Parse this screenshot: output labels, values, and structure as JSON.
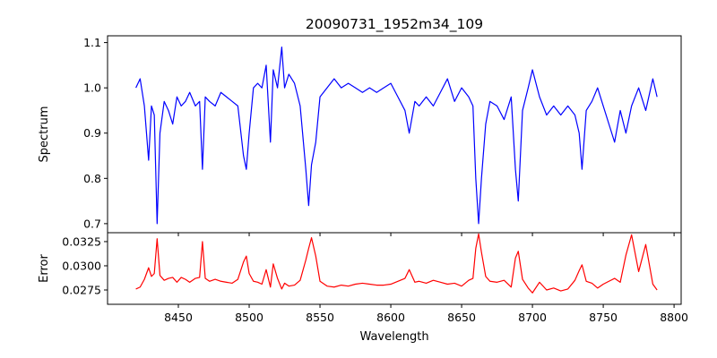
{
  "chart_data": [
    {
      "type": "line",
      "title": "20090731_1952m34_109",
      "xlabel": "",
      "ylabel": "Spectrum",
      "xlim": [
        8400,
        8805
      ],
      "ylim": [
        0.68,
        1.115
      ],
      "xticks": [
        8450,
        8500,
        8550,
        8600,
        8650,
        8700,
        8750,
        8800
      ],
      "yticks": [
        0.7,
        0.8,
        0.9,
        1.0,
        1.1
      ],
      "ytick_labels": [
        "0.7",
        "0.8",
        "0.9",
        "1.0",
        "1.1"
      ],
      "x_tick_labels_shown": false,
      "series": [
        {
          "name": "Spectrum",
          "color": "#0000ff",
          "x": [
            8420,
            8423,
            8426,
            8429,
            8431,
            8433,
            8435,
            8437,
            8440,
            8443,
            8446,
            8449,
            8452,
            8455,
            8458,
            8462,
            8465,
            8467,
            8469,
            8472,
            8476,
            8480,
            8484,
            8488,
            8492,
            8496,
            8498,
            8500,
            8503,
            8506,
            8509,
            8512,
            8515,
            8517,
            8520,
            8523,
            8525,
            8528,
            8532,
            8536,
            8540,
            8542,
            8544,
            8547,
            8550,
            8555,
            8560,
            8565,
            8570,
            8575,
            8580,
            8585,
            8590,
            8595,
            8600,
            8605,
            8610,
            8613,
            8617,
            8620,
            8625,
            8630,
            8635,
            8640,
            8645,
            8650,
            8655,
            8658,
            8660,
            8662,
            8664,
            8667,
            8670,
            8675,
            8680,
            8685,
            8688,
            8690,
            8693,
            8697,
            8700,
            8705,
            8710,
            8715,
            8720,
            8725,
            8730,
            8733,
            8735,
            8738,
            8742,
            8746,
            8750,
            8754,
            8758,
            8762,
            8766,
            8770,
            8775,
            8780,
            8785,
            8788
          ],
          "y": [
            1.0,
            1.02,
            0.96,
            0.84,
            0.96,
            0.94,
            0.7,
            0.9,
            0.97,
            0.95,
            0.92,
            0.98,
            0.96,
            0.97,
            0.99,
            0.96,
            0.97,
            0.82,
            0.98,
            0.97,
            0.96,
            0.99,
            0.98,
            0.97,
            0.96,
            0.85,
            0.82,
            0.9,
            1.0,
            1.01,
            1.0,
            1.05,
            0.88,
            1.04,
            1.0,
            1.09,
            1.0,
            1.03,
            1.01,
            0.96,
            0.82,
            0.74,
            0.83,
            0.88,
            0.98,
            1.0,
            1.02,
            1.0,
            1.01,
            1.0,
            0.99,
            1.0,
            0.99,
            1.0,
            1.01,
            0.98,
            0.95,
            0.9,
            0.97,
            0.96,
            0.98,
            0.96,
            0.99,
            1.02,
            0.97,
            1.0,
            0.98,
            0.96,
            0.8,
            0.7,
            0.8,
            0.92,
            0.97,
            0.96,
            0.93,
            0.98,
            0.82,
            0.75,
            0.95,
            1.0,
            1.04,
            0.98,
            0.94,
            0.96,
            0.94,
            0.96,
            0.94,
            0.9,
            0.82,
            0.95,
            0.97,
            1.0,
            0.96,
            0.92,
            0.88,
            0.95,
            0.9,
            0.96,
            1.0,
            0.95,
            1.02,
            0.98
          ]
        }
      ]
    },
    {
      "type": "line",
      "title": "",
      "xlabel": "Wavelength",
      "ylabel": "Error",
      "xlim": [
        8400,
        8805
      ],
      "ylim": [
        0.02602,
        0.03342
      ],
      "xticks": [
        8450,
        8500,
        8550,
        8600,
        8650,
        8700,
        8750,
        8800
      ],
      "xtick_labels": [
        "8450",
        "8500",
        "8550",
        "8600",
        "8650",
        "8700",
        "8750",
        "8800"
      ],
      "yticks": [
        0.0275,
        0.03,
        0.0325
      ],
      "ytick_labels": [
        "0.0275",
        "0.0300",
        "0.0325"
      ],
      "series": [
        {
          "name": "Error",
          "color": "#ff0000",
          "x": [
            8420,
            8423,
            8426,
            8429,
            8431,
            8433,
            8435,
            8437,
            8440,
            8443,
            8446,
            8449,
            8452,
            8455,
            8458,
            8462,
            8465,
            8467,
            8469,
            8472,
            8476,
            8480,
            8484,
            8488,
            8492,
            8496,
            8498,
            8500,
            8503,
            8506,
            8509,
            8512,
            8515,
            8517,
            8520,
            8523,
            8525,
            8528,
            8532,
            8536,
            8540,
            8542,
            8544,
            8547,
            8550,
            8555,
            8560,
            8565,
            8570,
            8575,
            8580,
            8585,
            8590,
            8595,
            8600,
            8605,
            8610,
            8613,
            8617,
            8620,
            8625,
            8630,
            8635,
            8640,
            8645,
            8650,
            8655,
            8658,
            8660,
            8662,
            8664,
            8667,
            8670,
            8675,
            8680,
            8685,
            8688,
            8690,
            8693,
            8697,
            8700,
            8705,
            8710,
            8715,
            8720,
            8725,
            8730,
            8733,
            8735,
            8738,
            8742,
            8746,
            8750,
            8754,
            8758,
            8762,
            8766,
            8770,
            8775,
            8780,
            8785,
            8788
          ],
          "y": [
            0.0276,
            0.0278,
            0.0286,
            0.0298,
            0.0289,
            0.0292,
            0.0328,
            0.029,
            0.0285,
            0.0287,
            0.0288,
            0.0283,
            0.0288,
            0.0286,
            0.0283,
            0.0287,
            0.0288,
            0.0325,
            0.0287,
            0.0284,
            0.0286,
            0.0284,
            0.0283,
            0.0282,
            0.0286,
            0.0304,
            0.031,
            0.0292,
            0.0284,
            0.0283,
            0.0281,
            0.0296,
            0.0278,
            0.0302,
            0.0287,
            0.0276,
            0.0282,
            0.0279,
            0.028,
            0.0285,
            0.0306,
            0.0318,
            0.0329,
            0.031,
            0.0284,
            0.0279,
            0.0278,
            0.028,
            0.0279,
            0.0281,
            0.0282,
            0.0281,
            0.028,
            0.028,
            0.0281,
            0.0284,
            0.0287,
            0.0296,
            0.0283,
            0.0284,
            0.0282,
            0.0285,
            0.0283,
            0.0281,
            0.0282,
            0.0279,
            0.0285,
            0.0287,
            0.0318,
            0.0333,
            0.0314,
            0.0289,
            0.0284,
            0.0283,
            0.0285,
            0.0278,
            0.0308,
            0.0315,
            0.0286,
            0.0277,
            0.0272,
            0.0283,
            0.0275,
            0.0277,
            0.0274,
            0.0276,
            0.0285,
            0.0295,
            0.0301,
            0.0284,
            0.0282,
            0.0277,
            0.0281,
            0.0284,
            0.0287,
            0.0283,
            0.0311,
            0.0332,
            0.0294,
            0.0322,
            0.0281,
            0.0275
          ]
        }
      ]
    }
  ]
}
